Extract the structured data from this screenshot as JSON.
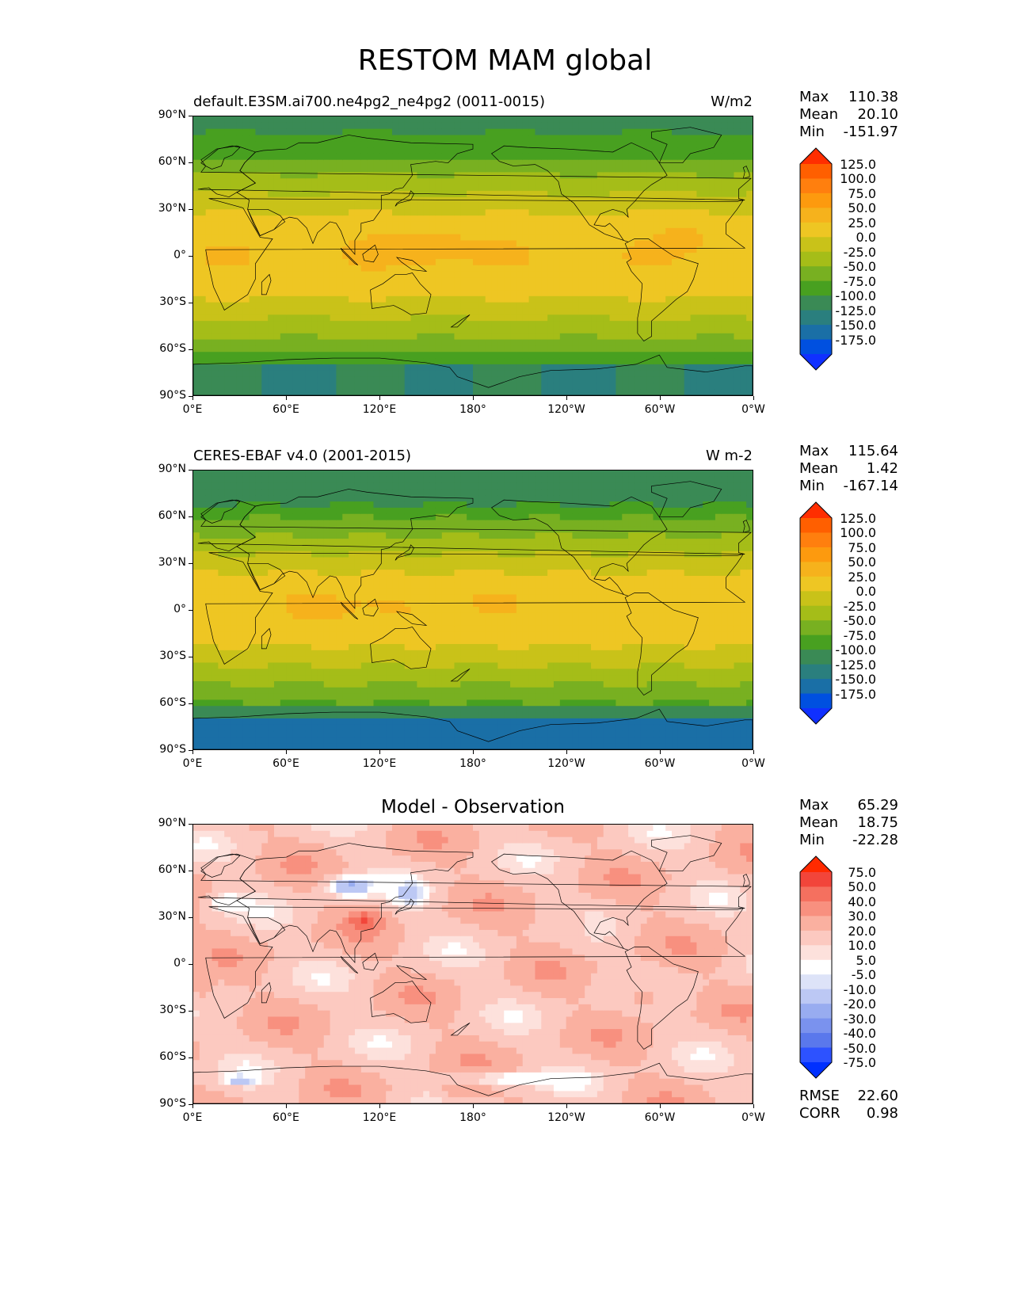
{
  "figure_title": "RESTOM MAM global",
  "lat_ticks": [
    "90°N",
    "60°N",
    "30°N",
    "0°",
    "30°S",
    "60°S",
    "90°S"
  ],
  "lon_ticks": [
    "0°E",
    "60°E",
    "120°E",
    "180°",
    "120°W",
    "60°W",
    "0°W"
  ],
  "abs_levels": [
    "125.0",
    "100.0",
    "75.0",
    "50.0",
    "25.0",
    "0.0",
    "-25.0",
    "-50.0",
    "-75.0",
    "-100.0",
    "-125.0",
    "-150.0",
    "-175.0"
  ],
  "abs_colors": [
    "#ff2e00",
    "#ff5f00",
    "#ff7f0e",
    "#fd9a0e",
    "#f6b21c",
    "#eec623",
    "#c9c219",
    "#a5bd18",
    "#78b021",
    "#48a020",
    "#3a8a55",
    "#2a7f7e",
    "#1a6fa6",
    "#0050e0",
    "#1030ff"
  ],
  "diff_levels": [
    "75.0",
    "50.0",
    "40.0",
    "30.0",
    "20.0",
    "10.0",
    "5.0",
    "-5.0",
    "-10.0",
    "-20.0",
    "-30.0",
    "-40.0",
    "-50.0",
    "-75.0"
  ],
  "diff_colors": [
    "#ff2a00",
    "#f2453a",
    "#f5705f",
    "#f8907f",
    "#fab0a0",
    "#fcc9c0",
    "#fde1dc",
    "#ffffff",
    "#dde3f8",
    "#bcc8f4",
    "#98acf0",
    "#7a92ee",
    "#5a78ec",
    "#2d52ff",
    "#0030ff"
  ],
  "panels": [
    {
      "left_title": "default.E3SM.ai700.ne4pg2_ne4pg2 (0011-0015)",
      "right_title": "W/m2",
      "stats": {
        "max_label": "Max",
        "max": "110.38",
        "mean_label": "Mean",
        "mean": "20.10",
        "min_label": "Min",
        "min": "-151.97"
      }
    },
    {
      "left_title": "CERES-EBAF v4.0 (2001-2015)",
      "right_title": "W m-2",
      "stats": {
        "max_label": "Max",
        "max": "115.64",
        "mean_label": "Mean",
        "mean": "1.42",
        "min_label": "Min",
        "min": "-167.14"
      }
    },
    {
      "center_title": "Model - Observation",
      "stats": {
        "max_label": "Max",
        "max": "65.29",
        "mean_label": "Mean",
        "mean": "18.75",
        "min_label": "Min",
        "min": "-22.28"
      },
      "extra": {
        "rmse_label": "RMSE",
        "rmse": "22.60",
        "corr_label": "CORR",
        "corr": "0.98"
      }
    }
  ]
}
